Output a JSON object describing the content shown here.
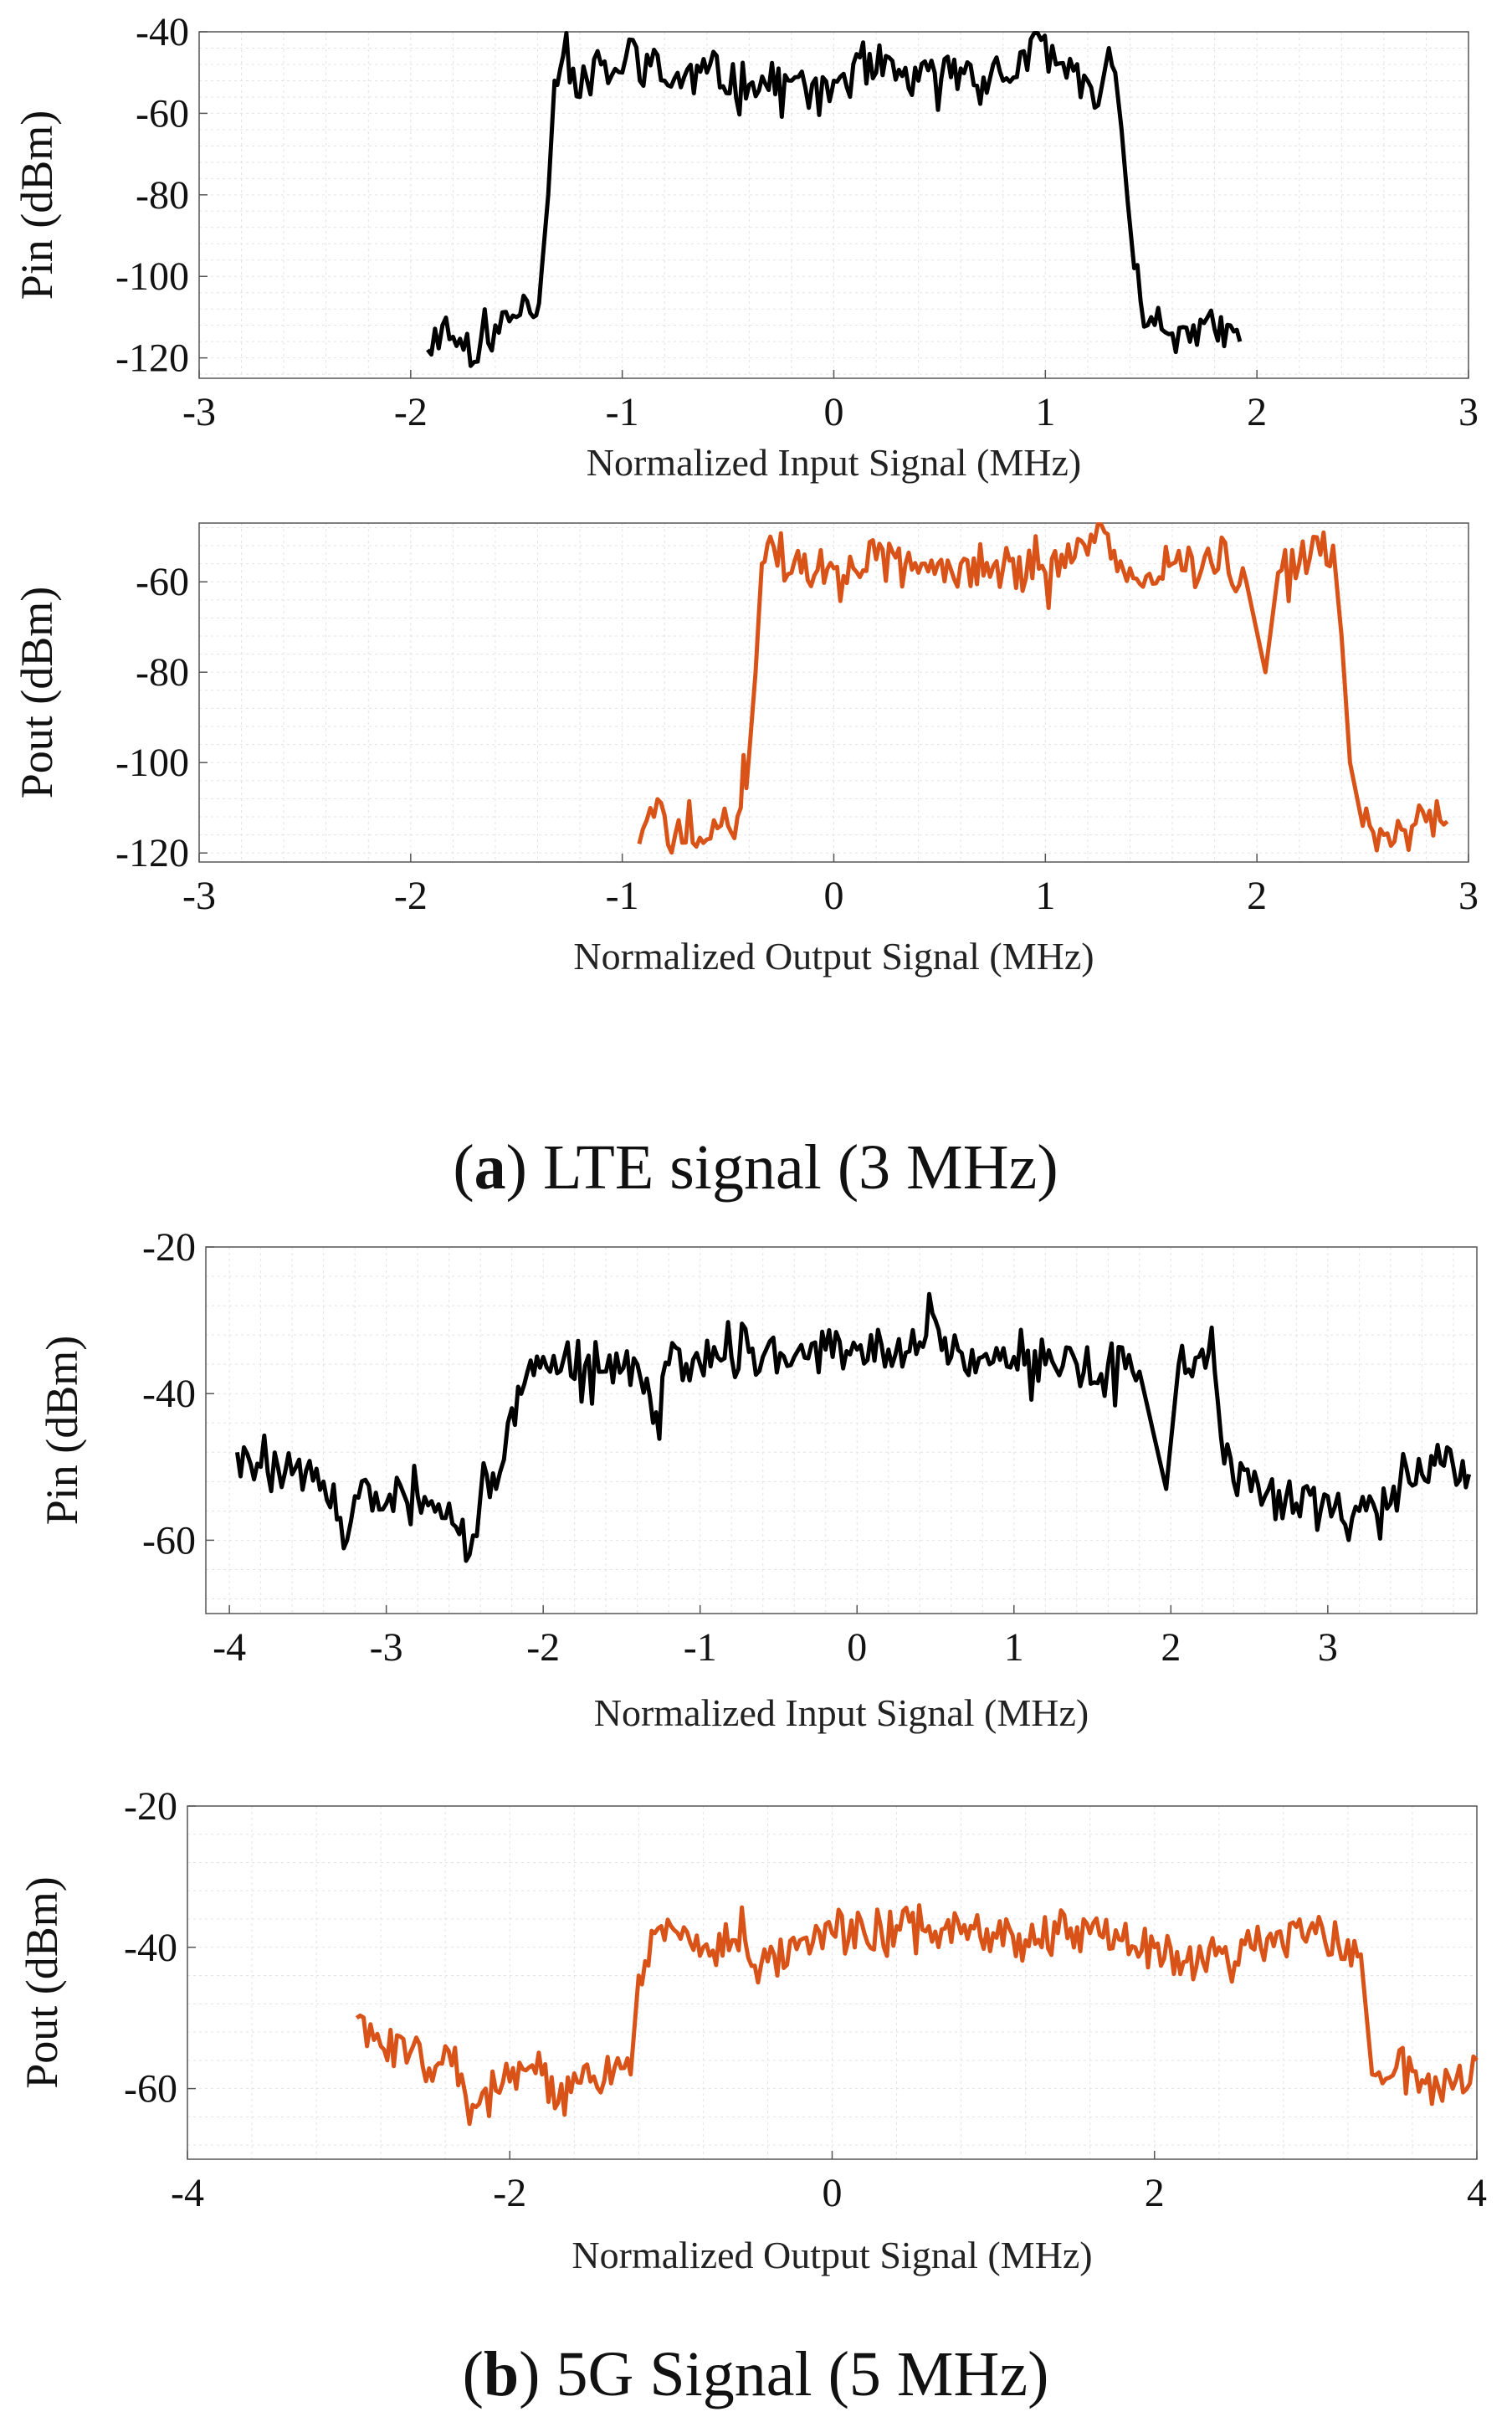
{
  "colors": {
    "input": "#000000",
    "output": "#d95319",
    "grid": "#e3e3e3",
    "axis": "#555555"
  },
  "captions": {
    "a": {
      "lp": "(",
      "letter": "a",
      "rest": ") LTE signal (3 MHz)"
    },
    "b": {
      "lp": "(",
      "letter": "b",
      "rest": ") 5G Signal (5 MHz)"
    }
  },
  "chart_data": [
    {
      "type": "line",
      "id": "a1",
      "title": "",
      "xlabel": "Normalized Input Signal (MHz)",
      "ylabel": "Pin (dBm)",
      "xlim": [
        -3,
        3
      ],
      "ylim": [
        -125,
        -40
      ],
      "xticks": [
        -3,
        -2,
        -1,
        0,
        1,
        2,
        3
      ],
      "yticks": [
        -120,
        -100,
        -80,
        -60,
        -40
      ],
      "color": "input",
      "grid": true,
      "series": [
        {
          "name": "Pin",
          "noise": 5,
          "seed": 11,
          "points": [
            [
              -1.92,
              -118
            ],
            [
              -1.85,
              -112
            ],
            [
              -1.75,
              -118
            ],
            [
              -1.7,
              -121
            ],
            [
              -1.6,
              -112
            ],
            [
              -1.5,
              -110
            ],
            [
              -1.45,
              -106
            ],
            [
              -1.42,
              -110
            ],
            [
              -1.38,
              -98
            ],
            [
              -1.35,
              -80
            ],
            [
              -1.32,
              -52
            ],
            [
              -1.28,
              -46
            ],
            [
              -1.2,
              -56
            ],
            [
              -1.1,
              -48
            ],
            [
              -1.0,
              -50
            ],
            [
              -0.95,
              -42
            ],
            [
              -0.8,
              -52
            ],
            [
              -0.6,
              -50
            ],
            [
              -0.4,
              -53
            ],
            [
              -0.2,
              -52
            ],
            [
              -0.02,
              -57
            ],
            [
              0.0,
              -52
            ],
            [
              0.2,
              -50
            ],
            [
              0.4,
              -52
            ],
            [
              0.6,
              -49
            ],
            [
              0.8,
              -52
            ],
            [
              0.98,
              -42
            ],
            [
              1.05,
              -48
            ],
            [
              1.2,
              -52
            ],
            [
              1.25,
              -58
            ],
            [
              1.3,
              -44
            ],
            [
              1.33,
              -50
            ],
            [
              1.36,
              -64
            ],
            [
              1.39,
              -82
            ],
            [
              1.42,
              -98
            ],
            [
              1.45,
              -106
            ],
            [
              1.5,
              -110
            ],
            [
              1.6,
              -114
            ],
            [
              1.7,
              -112
            ],
            [
              1.8,
              -113
            ],
            [
              1.92,
              -116
            ]
          ]
        }
      ]
    },
    {
      "type": "line",
      "id": "a2",
      "title": "",
      "xlabel": "Normalized Output Signal (MHz)",
      "ylabel": "Pout (dBm)",
      "xlim": [
        -3,
        3
      ],
      "ylim": [
        -122,
        -47
      ],
      "xticks": [
        -3,
        -2,
        -1,
        0,
        1,
        2,
        3
      ],
      "yticks": [
        -120,
        -100,
        -80,
        -60
      ],
      "color": "output",
      "grid": true,
      "series": [
        {
          "name": "Pout",
          "noise": 5,
          "seed": 29,
          "points": [
            [
              -0.92,
              -118
            ],
            [
              -0.85,
              -112
            ],
            [
              -0.75,
              -116
            ],
            [
              -0.6,
              -117
            ],
            [
              -0.5,
              -114
            ],
            [
              -0.44,
              -110
            ],
            [
              -0.4,
              -98
            ],
            [
              -0.37,
              -80
            ],
            [
              -0.34,
              -56
            ],
            [
              -0.3,
              -50
            ],
            [
              -0.2,
              -58
            ],
            [
              0.0,
              -57
            ],
            [
              0.2,
              -55
            ],
            [
              0.4,
              -58
            ],
            [
              0.6,
              -56
            ],
            [
              0.8,
              -57
            ],
            [
              1.0,
              -58
            ],
            [
              1.2,
              -54
            ],
            [
              1.28,
              -49
            ],
            [
              1.4,
              -57
            ],
            [
              1.6,
              -56
            ],
            [
              1.8,
              -58
            ],
            [
              1.95,
              -60
            ],
            [
              2.04,
              -80
            ],
            [
              2.1,
              -58
            ],
            [
              2.2,
              -56
            ],
            [
              2.3,
              -54
            ],
            [
              2.36,
              -52
            ],
            [
              2.4,
              -72
            ],
            [
              2.44,
              -100
            ],
            [
              2.5,
              -114
            ],
            [
              2.6,
              -116
            ],
            [
              2.7,
              -115
            ],
            [
              2.8,
              -113
            ],
            [
              2.9,
              -113
            ]
          ]
        }
      ]
    },
    {
      "type": "line",
      "id": "b1",
      "title": "",
      "xlabel": "Normalized Input Signal (MHz)",
      "ylabel": "Pin (dBm)",
      "xlim": [
        -4.15,
        3.95
      ],
      "ylim": [
        -70,
        -20
      ],
      "xticks": [
        -4,
        -3,
        -2,
        -1,
        0,
        1,
        2,
        3
      ],
      "yticks": [
        -60,
        -40,
        -20
      ],
      "color": "input",
      "grid": true,
      "series": [
        {
          "name": "Pin",
          "noise": 3,
          "seed": 47,
          "points": [
            [
              -3.95,
              -48
            ],
            [
              -3.8,
              -50
            ],
            [
              -3.6,
              -51
            ],
            [
              -3.4,
              -52
            ],
            [
              -3.25,
              -60
            ],
            [
              -3.2,
              -54
            ],
            [
              -3.0,
              -55
            ],
            [
              -2.8,
              -54
            ],
            [
              -2.6,
              -55
            ],
            [
              -2.47,
              -62
            ],
            [
              -2.4,
              -54
            ],
            [
              -2.3,
              -53
            ],
            [
              -2.25,
              -49
            ],
            [
              -2.2,
              -42
            ],
            [
              -2.1,
              -37
            ],
            [
              -2.0,
              -35
            ],
            [
              -1.8,
              -38
            ],
            [
              -1.6,
              -37
            ],
            [
              -1.4,
              -36
            ],
            [
              -1.3,
              -44
            ],
            [
              -1.2,
              -36
            ],
            [
              -1.0,
              -36
            ],
            [
              -0.8,
              -35
            ],
            [
              -0.6,
              -35
            ],
            [
              -0.4,
              -35
            ],
            [
              -0.2,
              -34
            ],
            [
              0.0,
              -34
            ],
            [
              0.2,
              -34
            ],
            [
              0.4,
              -33
            ],
            [
              0.5,
              -30
            ],
            [
              0.6,
              -35
            ],
            [
              0.8,
              -35
            ],
            [
              1.0,
              -35
            ],
            [
              1.2,
              -36
            ],
            [
              1.4,
              -36
            ],
            [
              1.6,
              -36
            ],
            [
              1.8,
              -37
            ],
            [
              1.97,
              -53
            ],
            [
              2.05,
              -36
            ],
            [
              2.2,
              -34
            ],
            [
              2.28,
              -37
            ],
            [
              2.32,
              -46
            ],
            [
              2.4,
              -52
            ],
            [
              2.6,
              -54
            ],
            [
              2.8,
              -55
            ],
            [
              3.0,
              -54
            ],
            [
              3.2,
              -56
            ],
            [
              3.4,
              -55
            ],
            [
              3.5,
              -50
            ],
            [
              3.6,
              -51
            ],
            [
              3.7,
              -47
            ],
            [
              3.8,
              -50
            ],
            [
              3.9,
              -51
            ]
          ]
        }
      ]
    },
    {
      "type": "line",
      "id": "b2",
      "title": "",
      "xlabel": "Normalized Output Signal (MHz)",
      "ylabel": "Pout (dBm)",
      "xlim": [
        -4,
        4
      ],
      "ylim": [
        -70,
        -20
      ],
      "xticks": [
        -4,
        -2,
        0,
        2,
        4
      ],
      "yticks": [
        -60,
        -40,
        -20
      ],
      "color": "output",
      "grid": true,
      "series": [
        {
          "name": "Pout",
          "noise": 3,
          "seed": 83,
          "points": [
            [
              -2.95,
              -50
            ],
            [
              -2.8,
              -54
            ],
            [
              -2.6,
              -54
            ],
            [
              -2.4,
              -54
            ],
            [
              -2.3,
              -58
            ],
            [
              -2.25,
              -65
            ],
            [
              -2.15,
              -60
            ],
            [
              -2.0,
              -59
            ],
            [
              -1.8,
              -58
            ],
            [
              -1.7,
              -62
            ],
            [
              -1.5,
              -59
            ],
            [
              -1.35,
              -57
            ],
            [
              -1.25,
              -58
            ],
            [
              -1.2,
              -44
            ],
            [
              -1.1,
              -38
            ],
            [
              -1.0,
              -37
            ],
            [
              -0.8,
              -40
            ],
            [
              -0.6,
              -39
            ],
            [
              -0.4,
              -42
            ],
            [
              -0.2,
              -39
            ],
            [
              0.0,
              -38
            ],
            [
              0.2,
              -38
            ],
            [
              0.4,
              -37
            ],
            [
              0.6,
              -37
            ],
            [
              0.8,
              -38
            ],
            [
              1.0,
              -38
            ],
            [
              1.2,
              -39
            ],
            [
              1.4,
              -38
            ],
            [
              1.6,
              -38
            ],
            [
              1.8,
              -39
            ],
            [
              2.0,
              -40
            ],
            [
              2.2,
              -42
            ],
            [
              2.4,
              -40
            ],
            [
              2.6,
              -40
            ],
            [
              2.8,
              -40
            ],
            [
              3.0,
              -38
            ],
            [
              3.2,
              -39
            ],
            [
              3.28,
              -41
            ],
            [
              3.35,
              -58
            ],
            [
              3.5,
              -57
            ],
            [
              3.7,
              -58
            ],
            [
              3.85,
              -60
            ],
            [
              4.0,
              -56
            ]
          ]
        }
      ]
    }
  ]
}
